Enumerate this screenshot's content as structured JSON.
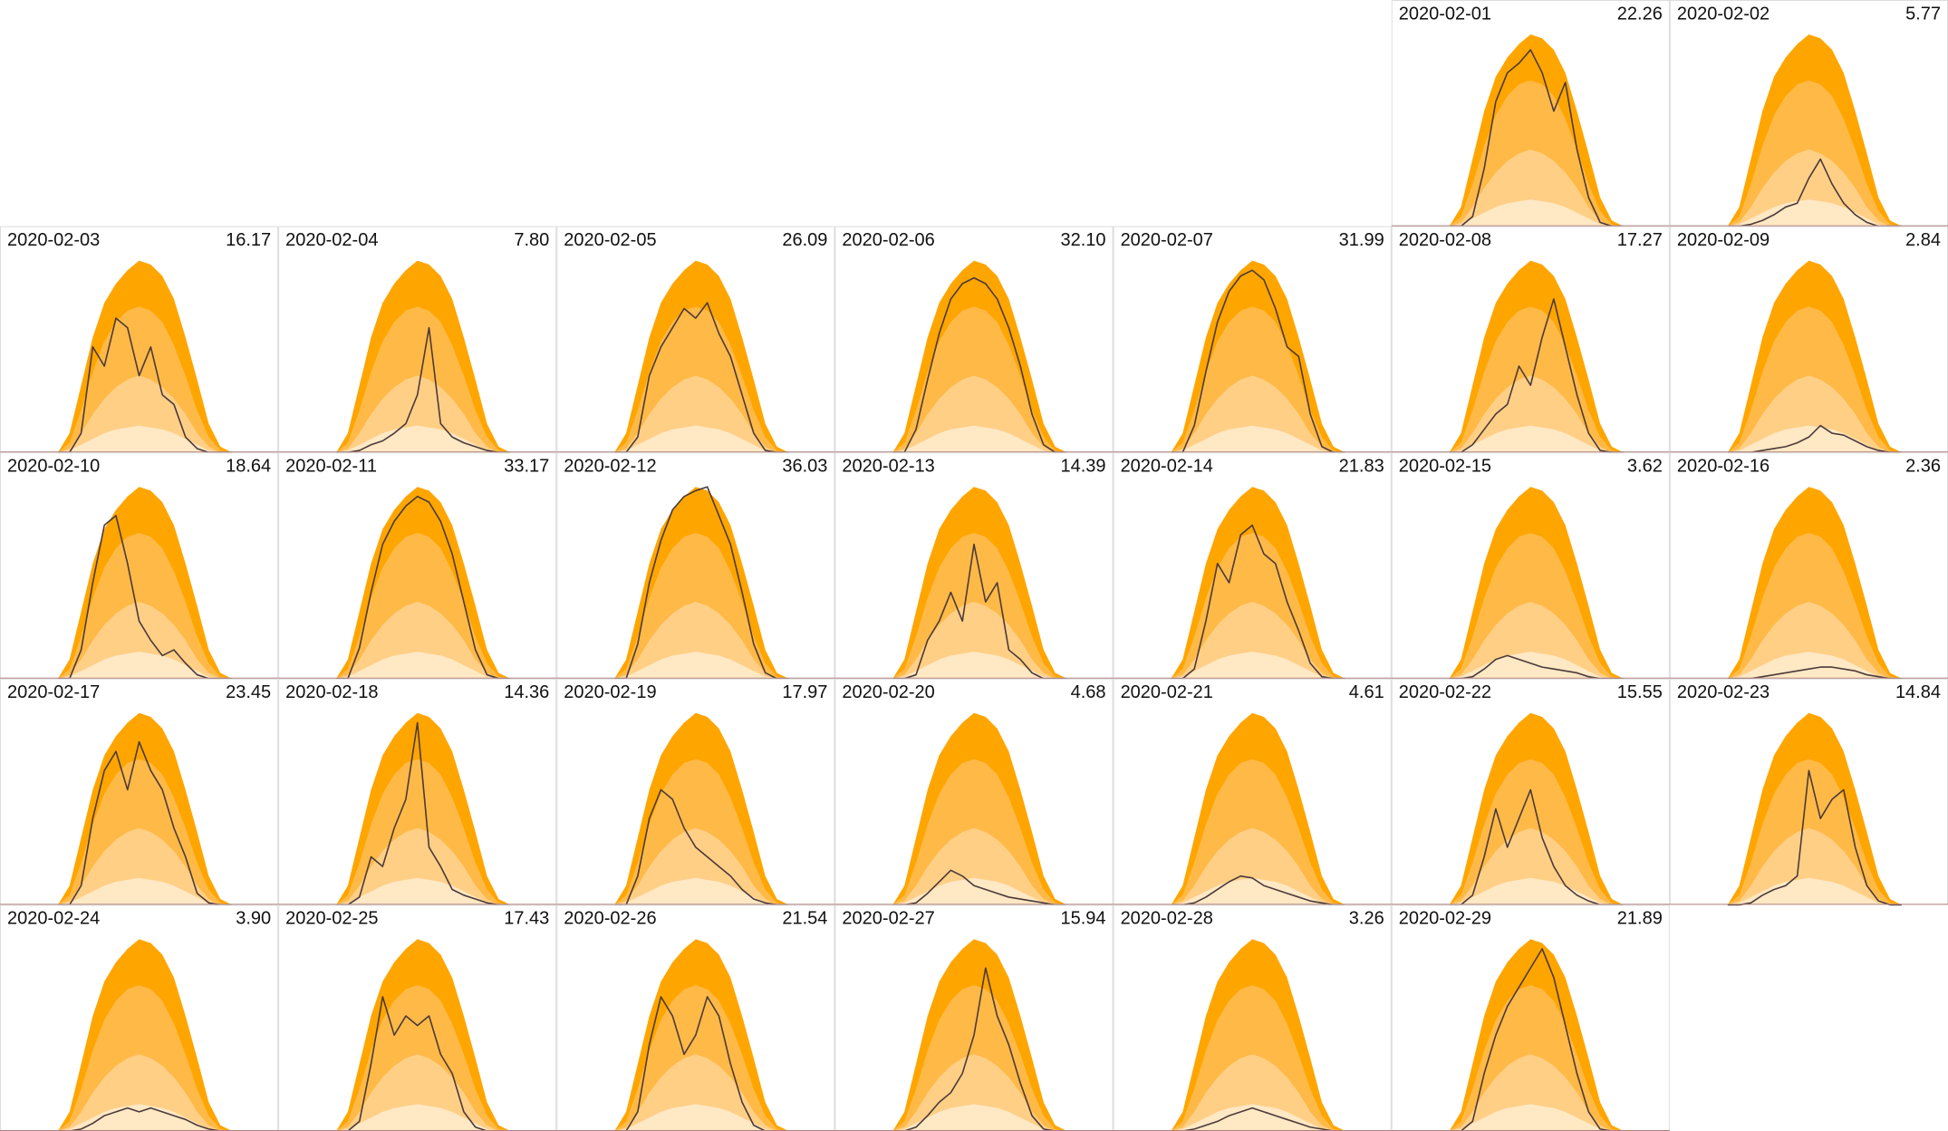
{
  "chart_data": {
    "type": "area",
    "xlim": [
      0,
      24
    ],
    "ylim": [
      0,
      100
    ],
    "x": [
      5,
      6,
      7,
      8,
      9,
      10,
      11,
      12,
      13,
      14,
      15,
      16,
      17,
      18,
      19,
      20
    ],
    "line_color": "#4a3a3a",
    "bands": [
      {
        "color": "#ffa500",
        "values": [
          0,
          10,
          35,
          60,
          78,
          88,
          95,
          100,
          98,
          92,
          80,
          60,
          38,
          15,
          3,
          0
        ]
      },
      {
        "color": "#ffb947",
        "values": [
          0,
          5,
          22,
          42,
          58,
          68,
          74,
          76,
          74,
          68,
          56,
          40,
          22,
          8,
          1,
          0
        ]
      },
      {
        "color": "#ffcf86",
        "values": [
          0,
          2,
          10,
          20,
          28,
          34,
          38,
          40,
          38,
          34,
          28,
          20,
          10,
          3,
          0,
          0
        ]
      },
      {
        "color": "#ffe8c4",
        "values": [
          0,
          1,
          4,
          7,
          10,
          12,
          13,
          14,
          13,
          12,
          10,
          7,
          4,
          1,
          0,
          0
        ]
      }
    ],
    "panels": [
      {
        "title": "2020-02-01",
        "value": 22.26,
        "values": [
          0,
          0,
          5,
          30,
          65,
          80,
          85,
          92,
          80,
          60,
          75,
          40,
          15,
          2,
          0,
          0
        ]
      },
      {
        "title": "2020-02-02",
        "value": 5.77,
        "values": [
          0,
          0,
          1,
          3,
          6,
          10,
          12,
          25,
          35,
          22,
          12,
          6,
          2,
          0,
          0,
          0
        ]
      },
      {
        "title": "2020-02-03",
        "value": 16.17,
        "values": [
          0,
          0,
          10,
          55,
          45,
          70,
          65,
          40,
          55,
          30,
          25,
          8,
          2,
          0,
          0,
          0
        ]
      },
      {
        "title": "2020-02-04",
        "value": 7.8,
        "value_label": "7.80",
        "values": [
          0,
          0,
          1,
          4,
          6,
          10,
          15,
          30,
          65,
          15,
          8,
          5,
          3,
          1,
          0,
          0
        ]
      },
      {
        "title": "2020-02-05",
        "value": 26.09,
        "values": [
          0,
          0,
          8,
          40,
          55,
          65,
          75,
          70,
          78,
          62,
          50,
          30,
          10,
          1,
          0,
          0
        ]
      },
      {
        "title": "2020-02-06",
        "value": 32.1,
        "value_label": "32.10",
        "values": [
          0,
          0,
          12,
          38,
          62,
          80,
          88,
          91,
          88,
          80,
          65,
          45,
          20,
          4,
          0,
          0
        ]
      },
      {
        "title": "2020-02-07",
        "value": 31.99,
        "values": [
          0,
          0,
          14,
          42,
          68,
          84,
          92,
          95,
          90,
          75,
          55,
          50,
          20,
          3,
          0,
          0
        ]
      },
      {
        "title": "2020-02-08",
        "value": 17.27,
        "values": [
          0,
          0,
          4,
          12,
          20,
          25,
          45,
          35,
          60,
          80,
          55,
          30,
          10,
          1,
          0,
          0
        ]
      },
      {
        "title": "2020-02-09",
        "value": 2.84,
        "values": [
          0,
          0,
          0,
          1,
          2,
          3,
          5,
          8,
          14,
          10,
          9,
          6,
          3,
          1,
          0,
          0
        ]
      },
      {
        "title": "2020-02-10",
        "value": 18.64,
        "values": [
          0,
          0,
          15,
          50,
          80,
          85,
          60,
          30,
          20,
          12,
          15,
          8,
          2,
          0,
          0,
          0
        ]
      },
      {
        "title": "2020-02-11",
        "value": 33.17,
        "values": [
          0,
          0,
          16,
          45,
          70,
          82,
          90,
          95,
          92,
          82,
          65,
          40,
          15,
          2,
          0,
          0
        ]
      },
      {
        "title": "2020-02-12",
        "value": 36.03,
        "values": [
          0,
          0,
          18,
          50,
          72,
          88,
          95,
          98,
          100,
          85,
          70,
          45,
          18,
          3,
          0,
          0
        ]
      },
      {
        "title": "2020-02-13",
        "value": 14.39,
        "values": [
          0,
          0,
          2,
          20,
          30,
          45,
          30,
          70,
          40,
          50,
          15,
          10,
          3,
          0,
          0,
          0
        ]
      },
      {
        "title": "2020-02-14",
        "value": 21.83,
        "values": [
          0,
          0,
          5,
          30,
          60,
          50,
          75,
          80,
          65,
          60,
          40,
          25,
          8,
          1,
          0,
          0
        ]
      },
      {
        "title": "2020-02-15",
        "value": 3.62,
        "values": [
          0,
          0,
          1,
          5,
          10,
          12,
          10,
          8,
          6,
          5,
          4,
          3,
          1,
          0,
          0,
          0
        ]
      },
      {
        "title": "2020-02-16",
        "value": 2.36,
        "values": [
          0,
          0,
          0,
          1,
          2,
          3,
          4,
          5,
          6,
          6,
          5,
          4,
          2,
          1,
          0,
          0
        ]
      },
      {
        "title": "2020-02-17",
        "value": 23.45,
        "values": [
          0,
          0,
          10,
          45,
          70,
          80,
          60,
          85,
          70,
          60,
          40,
          25,
          6,
          1,
          0,
          0
        ]
      },
      {
        "title": "2020-02-18",
        "value": 14.36,
        "values": [
          0,
          0,
          4,
          25,
          20,
          40,
          55,
          95,
          30,
          20,
          8,
          5,
          3,
          1,
          0,
          0
        ]
      },
      {
        "title": "2020-02-19",
        "value": 17.97,
        "values": [
          0,
          0,
          15,
          45,
          60,
          55,
          40,
          30,
          25,
          20,
          15,
          8,
          3,
          1,
          0,
          0
        ]
      },
      {
        "title": "2020-02-20",
        "value": 4.68,
        "values": [
          0,
          0,
          1,
          6,
          12,
          18,
          15,
          10,
          8,
          6,
          4,
          3,
          2,
          1,
          0,
          0
        ]
      },
      {
        "title": "2020-02-21",
        "value": 4.61,
        "values": [
          0,
          0,
          1,
          4,
          8,
          12,
          15,
          14,
          10,
          8,
          6,
          4,
          2,
          1,
          0,
          0
        ]
      },
      {
        "title": "2020-02-22",
        "value": 15.55,
        "values": [
          0,
          0,
          5,
          25,
          50,
          30,
          45,
          60,
          35,
          20,
          10,
          5,
          2,
          0,
          0,
          0
        ]
      },
      {
        "title": "2020-02-23",
        "value": 14.84,
        "values": [
          0,
          0,
          1,
          5,
          8,
          10,
          15,
          70,
          45,
          55,
          60,
          30,
          10,
          2,
          0,
          0
        ]
      },
      {
        "title": "2020-02-24",
        "value": 3.9,
        "value_label": "3.90",
        "values": [
          0,
          0,
          1,
          4,
          8,
          10,
          12,
          10,
          12,
          10,
          8,
          6,
          3,
          1,
          0,
          0
        ]
      },
      {
        "title": "2020-02-25",
        "value": 17.43,
        "values": [
          0,
          0,
          5,
          35,
          70,
          50,
          60,
          55,
          60,
          40,
          30,
          10,
          2,
          0,
          0,
          0
        ]
      },
      {
        "title": "2020-02-26",
        "value": 21.54,
        "values": [
          0,
          0,
          10,
          45,
          70,
          60,
          40,
          50,
          70,
          60,
          35,
          15,
          3,
          0,
          0,
          0
        ]
      },
      {
        "title": "2020-02-27",
        "value": 15.94,
        "values": [
          0,
          0,
          2,
          8,
          15,
          20,
          30,
          50,
          85,
          60,
          45,
          25,
          8,
          1,
          0,
          0
        ]
      },
      {
        "title": "2020-02-28",
        "value": 3.26,
        "values": [
          0,
          0,
          1,
          3,
          5,
          8,
          10,
          12,
          10,
          8,
          6,
          4,
          2,
          1,
          0,
          0
        ]
      },
      {
        "title": "2020-02-29",
        "value": 21.89,
        "values": [
          0,
          0,
          5,
          30,
          50,
          65,
          75,
          85,
          95,
          80,
          55,
          30,
          10,
          1,
          0,
          0
        ]
      }
    ]
  }
}
